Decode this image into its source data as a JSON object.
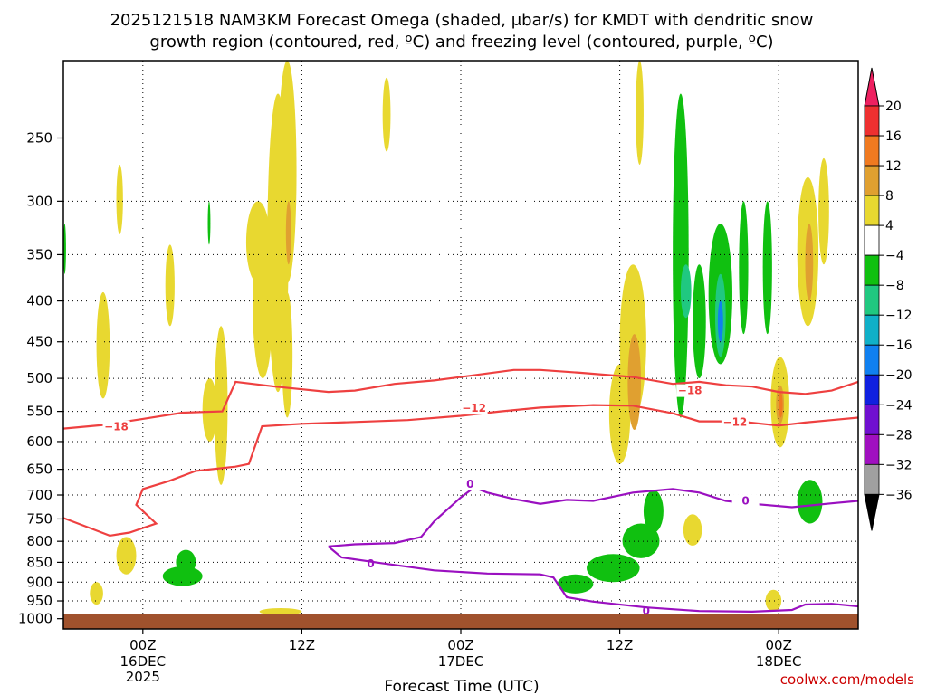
{
  "chart_data": {
    "type": "heatmap",
    "title_line1": "2025121518 NAM3KM Forecast Omega (shaded, μbar/s) for KMDT with dendritic snow",
    "title_line2": "growth region (contoured, red, ºC) and freezing level (contoured, purple, ºC)",
    "xlabel": "Forecast Time (UTC)",
    "ylabel": "",
    "credit": "coolwx.com/models",
    "x_ticks": [
      {
        "hour": 6,
        "label": "00Z",
        "sub1": "16DEC",
        "sub2": "2025"
      },
      {
        "hour": 18,
        "label": "12Z",
        "sub1": "",
        "sub2": ""
      },
      {
        "hour": 30,
        "label": "00Z",
        "sub1": "17DEC",
        "sub2": ""
      },
      {
        "hour": 42,
        "label": "12Z",
        "sub1": "",
        "sub2": ""
      },
      {
        "hour": 54,
        "label": "00Z",
        "sub1": "18DEC",
        "sub2": ""
      }
    ],
    "x_range_hours": [
      0,
      60
    ],
    "y_ticks_hpa": [
      "250",
      "300",
      "350",
      "400",
      "450",
      "500",
      "550",
      "600",
      "650",
      "700",
      "750",
      "800",
      "850",
      "900",
      "950",
      "1000"
    ],
    "y_range_hpa": [
      200,
      1030
    ],
    "colorbar": {
      "labels": [
        "20",
        "16",
        "12",
        "8",
        "4",
        "−4",
        "−8",
        "−12",
        "−16",
        "−20",
        "−24",
        "−28",
        "−32",
        "−36"
      ],
      "colors": [
        "#ee2060",
        "#ee3030",
        "#f07a20",
        "#e0a030",
        "#e8d830",
        "#ffffff",
        "#10c010",
        "#20c880",
        "#10b0c8",
        "#1080f0",
        "#1020e0",
        "#7010d0",
        "#a010c0",
        "#a0a0a0",
        "#000000"
      ]
    },
    "omega_cells": [
      {
        "t0": 2.5,
        "t1": 3.5,
        "p0": 390,
        "p1": 530,
        "v": 4
      },
      {
        "t0": 4.0,
        "t1": 4.5,
        "p0": 270,
        "p1": 330,
        "v": 4
      },
      {
        "t0": 7.7,
        "t1": 8.4,
        "p0": 340,
        "p1": 430,
        "v": 4
      },
      {
        "t0": 10.5,
        "t1": 11.6,
        "p0": 500,
        "p1": 600,
        "v": 4
      },
      {
        "t0": 11.4,
        "t1": 12.4,
        "p0": 430,
        "p1": 680,
        "v": 4
      },
      {
        "t0": 14.3,
        "t1": 15.8,
        "p0": 330,
        "p1": 500,
        "v": 4
      },
      {
        "t0": 13.8,
        "t1": 15.6,
        "p0": 300,
        "p1": 380,
        "v": 4
      },
      {
        "t0": 15.4,
        "t1": 17.0,
        "p0": 220,
        "p1": 520,
        "v": 4
      },
      {
        "t0": 16.2,
        "t1": 17.6,
        "p0": 200,
        "p1": 380,
        "v": 4
      },
      {
        "t0": 16.5,
        "t1": 17.3,
        "p0": 390,
        "p1": 560,
        "v": 4
      },
      {
        "t0": 16.8,
        "t1": 17.2,
        "p0": 300,
        "p1": 360,
        "v": 8
      },
      {
        "t0": 24.1,
        "t1": 24.7,
        "p0": 210,
        "p1": 260,
        "v": 4
      },
      {
        "t0": 43.2,
        "t1": 43.8,
        "p0": 200,
        "p1": 270,
        "v": 4
      },
      {
        "t0": 41.2,
        "t1": 42.8,
        "p0": 480,
        "p1": 640,
        "v": 4
      },
      {
        "t0": 42.0,
        "t1": 44.0,
        "p0": 360,
        "p1": 560,
        "v": 4
      },
      {
        "t0": 42.6,
        "t1": 43.6,
        "p0": 440,
        "p1": 580,
        "v": 8
      },
      {
        "t0": 53.4,
        "t1": 54.8,
        "p0": 470,
        "p1": 610,
        "v": 4
      },
      {
        "t0": 53.8,
        "t1": 54.4,
        "p0": 510,
        "p1": 570,
        "v": 8
      },
      {
        "t0": 54.0,
        "t1": 54.3,
        "p0": 520,
        "p1": 560,
        "v": 12
      },
      {
        "t0": 55.4,
        "t1": 57.0,
        "p0": 280,
        "p1": 430,
        "v": 4
      },
      {
        "t0": 56.0,
        "t1": 56.6,
        "p0": 320,
        "p1": 400,
        "v": 8
      },
      {
        "t0": 57.0,
        "t1": 57.8,
        "p0": 265,
        "p1": 360,
        "v": 4
      },
      {
        "t0": 2.0,
        "t1": 3.0,
        "p0": 900,
        "p1": 960,
        "v": 4
      },
      {
        "t0": 4.0,
        "t1": 5.5,
        "p0": 790,
        "p1": 880,
        "v": 4
      },
      {
        "t0": 7.5,
        "t1": 10.5,
        "p0": 860,
        "p1": 910,
        "v": -4
      },
      {
        "t0": 8.5,
        "t1": 10.0,
        "p0": 820,
        "p1": 880,
        "v": -4
      },
      {
        "t0": 14.8,
        "t1": 18.0,
        "p0": 970,
        "p1": 990,
        "v": 4
      },
      {
        "t0": 37.3,
        "t1": 40.0,
        "p0": 880,
        "p1": 930,
        "v": -4
      },
      {
        "t0": 39.5,
        "t1": 43.5,
        "p0": 830,
        "p1": 900,
        "v": -4
      },
      {
        "t0": 42.2,
        "t1": 45.0,
        "p0": 760,
        "p1": 840,
        "v": -4
      },
      {
        "t0": 43.8,
        "t1": 45.3,
        "p0": 690,
        "p1": 780,
        "v": -4
      },
      {
        "t0": 46.8,
        "t1": 48.2,
        "p0": 740,
        "p1": 810,
        "v": 4
      },
      {
        "t0": 53.0,
        "t1": 54.2,
        "p0": 920,
        "p1": 980,
        "v": 4
      },
      {
        "t0": 55.4,
        "t1": 57.3,
        "p0": 670,
        "p1": 760,
        "v": -4
      },
      {
        "t0": 46.0,
        "t1": 47.2,
        "p0": 220,
        "p1": 560,
        "v": -4
      },
      {
        "t0": 47.5,
        "t1": 48.5,
        "p0": 360,
        "p1": 500,
        "v": -4
      },
      {
        "t0": 48.7,
        "t1": 50.5,
        "p0": 320,
        "p1": 480,
        "v": -4
      },
      {
        "t0": 46.6,
        "t1": 47.4,
        "p0": 360,
        "p1": 420,
        "v": -8
      },
      {
        "t0": 49.2,
        "t1": 50.0,
        "p0": 370,
        "p1": 470,
        "v": -8
      },
      {
        "t0": 49.4,
        "t1": 49.8,
        "p0": 400,
        "p1": 450,
        "v": -16
      },
      {
        "t0": 51.0,
        "t1": 51.7,
        "p0": 300,
        "p1": 440,
        "v": -4
      },
      {
        "t0": 52.8,
        "t1": 53.5,
        "p0": 300,
        "p1": 440,
        "v": -4
      },
      {
        "t0": 10.9,
        "t1": 11.1,
        "p0": 300,
        "p1": 340,
        "v": -4
      },
      {
        "t0": 0,
        "t1": 0.2,
        "p0": 320,
        "p1": 370,
        "v": -4
      }
    ],
    "contours": [
      {
        "name": "dgz-minus18",
        "color": "#ee4040",
        "label": "−18",
        "label_at": [
          [
            4,
            575
          ],
          [
            47.3,
            518
          ]
        ],
        "points": [
          [
            0,
            578
          ],
          [
            3,
            572
          ],
          [
            6,
            562
          ],
          [
            9,
            552
          ],
          [
            12,
            550
          ],
          [
            13,
            505
          ],
          [
            16,
            512
          ],
          [
            20,
            520
          ],
          [
            22,
            518
          ],
          [
            25,
            508
          ],
          [
            28,
            503
          ],
          [
            32,
            493
          ],
          [
            34,
            488
          ],
          [
            36,
            488
          ],
          [
            39,
            492
          ],
          [
            43,
            498
          ],
          [
            46,
            508
          ],
          [
            48,
            505
          ],
          [
            50,
            510
          ],
          [
            52,
            512
          ],
          [
            54,
            520
          ],
          [
            56,
            523
          ],
          [
            58,
            518
          ],
          [
            60,
            505
          ]
        ]
      },
      {
        "name": "dgz-minus12",
        "color": "#ee4040",
        "label": "−12",
        "label_at": [
          [
            31,
            545
          ],
          [
            50.7,
            567
          ]
        ],
        "points": [
          [
            0,
            748
          ],
          [
            2,
            770
          ],
          [
            3.5,
            787
          ],
          [
            5,
            780
          ],
          [
            7,
            760
          ],
          [
            5.5,
            720
          ],
          [
            6,
            688
          ],
          [
            8,
            672
          ],
          [
            10,
            653
          ],
          [
            13,
            645
          ],
          [
            14,
            640
          ],
          [
            15,
            574
          ],
          [
            18,
            570
          ],
          [
            22,
            567
          ],
          [
            26,
            564
          ],
          [
            30,
            557
          ],
          [
            33,
            550
          ],
          [
            36,
            544
          ],
          [
            40,
            540
          ],
          [
            43,
            541
          ],
          [
            46,
            553
          ],
          [
            48,
            566
          ],
          [
            51,
            566
          ],
          [
            54,
            573
          ],
          [
            56,
            568
          ],
          [
            58,
            564
          ],
          [
            60,
            560
          ]
        ]
      },
      {
        "name": "freezing-level",
        "color": "#9a10c0",
        "label": "0",
        "label_at": [
          [
            23.2,
            853
          ],
          [
            30.7,
            678
          ],
          [
            51.5,
            712
          ],
          [
            44,
            978
          ]
        ],
        "points": [
          [
            20,
            812
          ],
          [
            22,
            807
          ],
          [
            25,
            804
          ],
          [
            27,
            790
          ],
          [
            28,
            755
          ],
          [
            30,
            705
          ],
          [
            31,
            685
          ],
          [
            32,
            695
          ],
          [
            34,
            708
          ],
          [
            36,
            718
          ],
          [
            38,
            710
          ],
          [
            40,
            712
          ],
          [
            43,
            695
          ],
          [
            46,
            688
          ],
          [
            48,
            695
          ],
          [
            50,
            712
          ],
          [
            52,
            718
          ],
          [
            55,
            725
          ],
          [
            58,
            717
          ],
          [
            60,
            712
          ]
        ]
      },
      {
        "name": "freezing-level-low",
        "color": "#9a10c0",
        "label": "",
        "label_at": [],
        "points": [
          [
            20,
            812
          ],
          [
            21,
            838
          ],
          [
            24,
            852
          ],
          [
            28,
            870
          ],
          [
            32,
            878
          ],
          [
            36,
            880
          ],
          [
            37,
            888
          ],
          [
            38,
            940
          ],
          [
            40,
            952
          ],
          [
            44,
            968
          ],
          [
            48,
            978
          ],
          [
            52,
            980
          ],
          [
            55,
            975
          ],
          [
            56,
            960
          ],
          [
            58,
            958
          ],
          [
            60,
            965
          ]
        ]
      }
    ]
  }
}
